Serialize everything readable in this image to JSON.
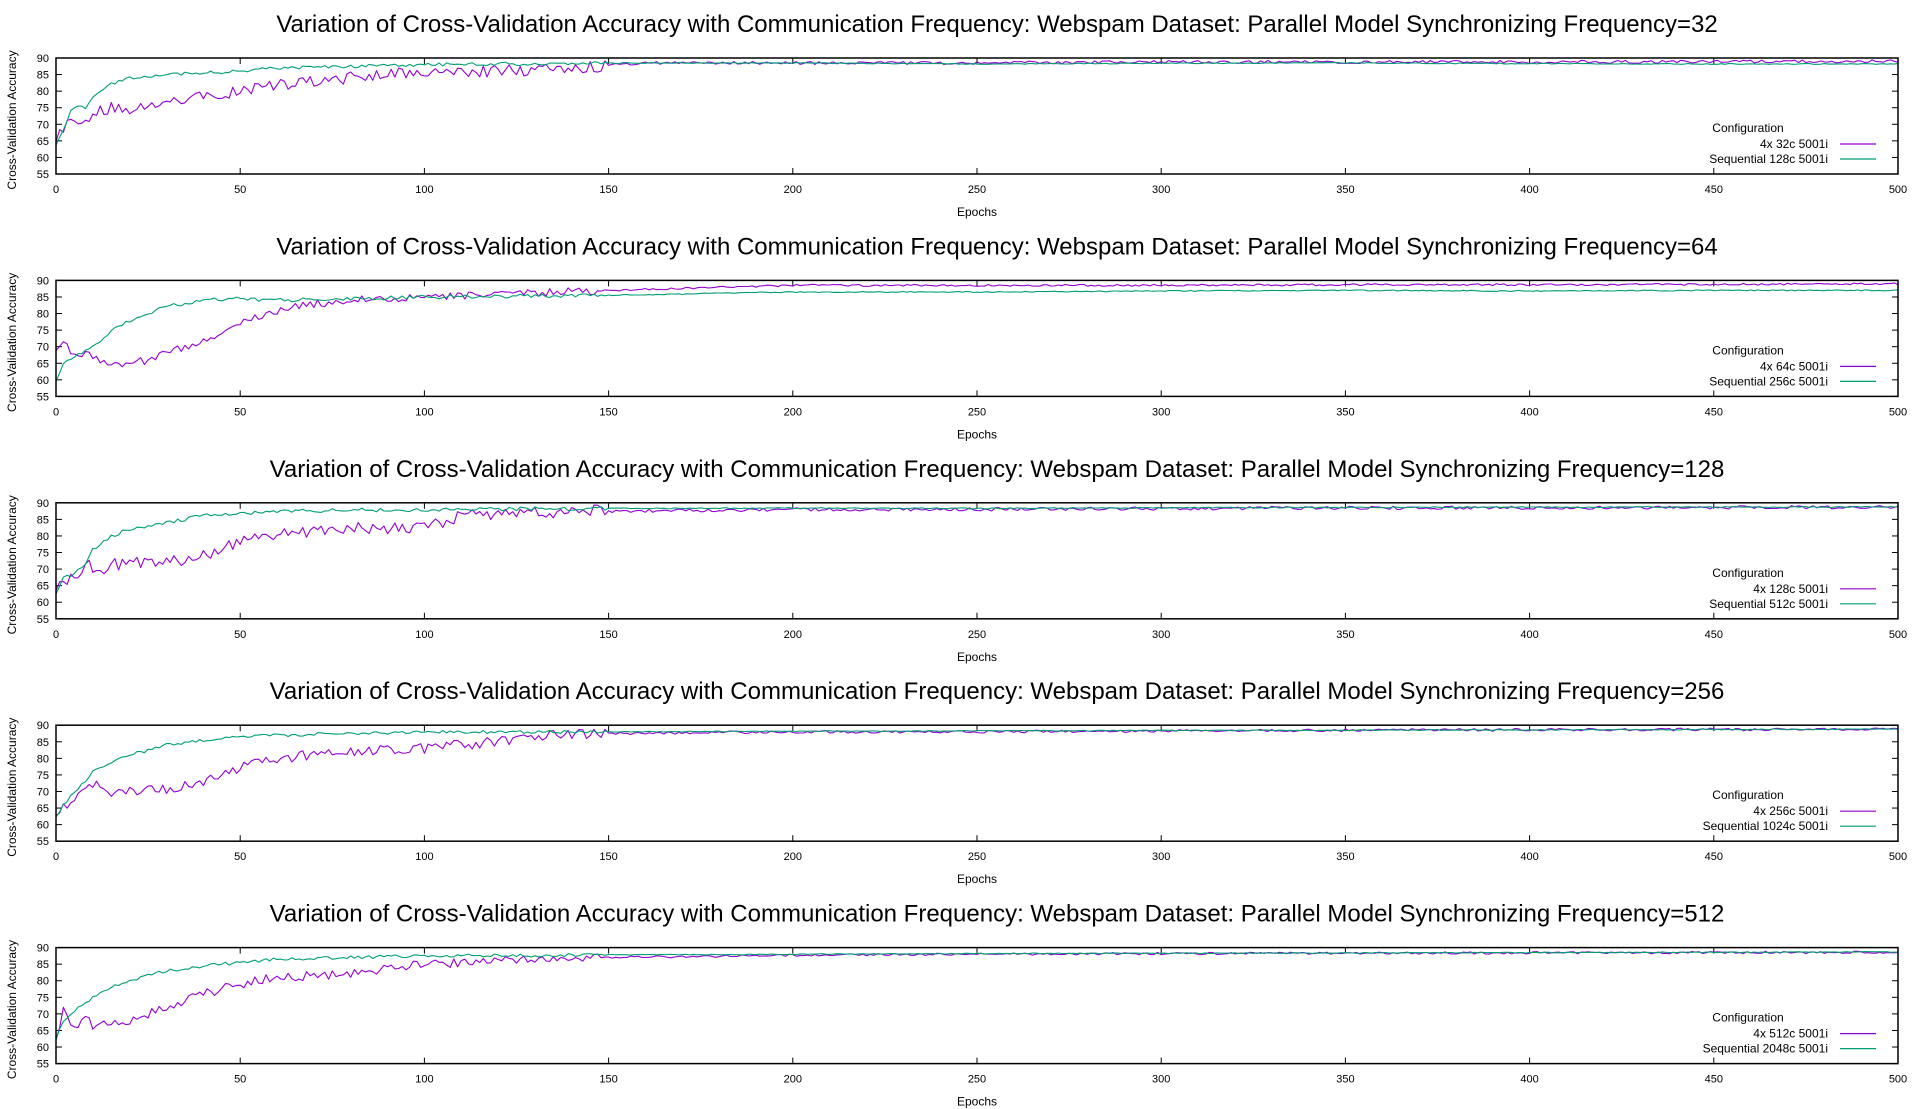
{
  "colors": {
    "series_parallel": "#9400d3",
    "series_sequential": "#009e73",
    "overlap": "#0000cc",
    "axis": "#000000"
  },
  "chart_data": [
    {
      "type": "line",
      "title": "Variation of Cross-Validation Accuracy with Communication Frequency: Webspam Dataset: Parallel Model Synchronizing Frequency=32",
      "xlabel": "Epochs",
      "ylabel": "Cross-Validation Accuracy",
      "xlim": [
        0,
        500
      ],
      "ylim": [
        55,
        90
      ],
      "xticks": [
        0,
        50,
        100,
        150,
        200,
        250,
        300,
        350,
        400,
        450,
        500
      ],
      "yticks": [
        55,
        60,
        65,
        70,
        75,
        80,
        85,
        90
      ],
      "legend_title": "Configuration",
      "legend_position": "bottom-right",
      "series": [
        {
          "name": "4x 32c 5001i",
          "color": "#9400d3",
          "x": [
            0,
            2,
            4,
            6,
            8,
            10,
            15,
            20,
            25,
            30,
            35,
            40,
            50,
            60,
            70,
            80,
            100,
            120,
            140,
            160,
            200,
            250,
            300,
            350,
            400,
            450,
            500
          ],
          "y": [
            66,
            69,
            72,
            70,
            71,
            74,
            75,
            74,
            76,
            77,
            78,
            78,
            80,
            82,
            83,
            84,
            86,
            86,
            87,
            88.5,
            88.5,
            88.5,
            88.8,
            88.8,
            88.8,
            88.9,
            89
          ],
          "noise": 1.8
        },
        {
          "name": "Sequential 128c 5001i",
          "color": "#009e73",
          "x": [
            0,
            2,
            4,
            6,
            8,
            10,
            15,
            20,
            30,
            40,
            50,
            60,
            80,
            100,
            150,
            200,
            250,
            300,
            350,
            400,
            450,
            500
          ],
          "y": [
            64,
            68,
            74,
            76,
            75,
            78,
            82,
            84,
            85,
            85.5,
            86,
            87,
            87.5,
            88,
            88.5,
            88.5,
            88.2,
            88.4,
            88.5,
            88.3,
            88.2,
            88.2
          ],
          "noise": 0.5
        }
      ]
    },
    {
      "type": "line",
      "title": "Variation of Cross-Validation Accuracy with Communication Frequency: Webspam Dataset: Parallel Model Synchronizing Frequency=64",
      "xlabel": "Epochs",
      "ylabel": "Cross-Validation Accuracy",
      "xlim": [
        0,
        500
      ],
      "ylim": [
        55,
        90
      ],
      "xticks": [
        0,
        50,
        100,
        150,
        200,
        250,
        300,
        350,
        400,
        450,
        500
      ],
      "yticks": [
        55,
        60,
        65,
        70,
        75,
        80,
        85,
        90
      ],
      "legend_title": "Configuration",
      "legend_position": "bottom-right",
      "series": [
        {
          "name": "4x 64c 5001i",
          "color": "#9400d3",
          "x": [
            0,
            2,
            5,
            10,
            15,
            20,
            25,
            30,
            40,
            50,
            60,
            70,
            80,
            100,
            120,
            150,
            200,
            250,
            300,
            350,
            400,
            450,
            500
          ],
          "y": [
            70,
            71,
            68,
            67,
            65,
            65,
            66,
            68,
            72,
            77,
            81,
            83,
            84,
            85,
            86,
            87,
            88.5,
            88.5,
            88.5,
            88.7,
            88.7,
            88.8,
            89
          ],
          "noise": 1.2
        },
        {
          "name": "Sequential 256c 5001i",
          "color": "#009e73",
          "x": [
            0,
            2,
            5,
            10,
            15,
            20,
            30,
            40,
            50,
            60,
            80,
            100,
            150,
            200,
            250,
            300,
            350,
            400,
            450,
            500
          ],
          "y": [
            60,
            65,
            67,
            70,
            75,
            78,
            82,
            84,
            84.5,
            84,
            84.5,
            85,
            85.5,
            86.5,
            86.5,
            86.8,
            87,
            86.8,
            87,
            87
          ],
          "noise": 0.6
        }
      ]
    },
    {
      "type": "line",
      "title": "Variation of Cross-Validation Accuracy with Communication Frequency: Webspam Dataset: Parallel Model Synchronizing Frequency=128",
      "xlabel": "Epochs",
      "ylabel": "Cross-Validation Accuracy",
      "xlim": [
        0,
        500
      ],
      "ylim": [
        55,
        90
      ],
      "xticks": [
        0,
        50,
        100,
        150,
        200,
        250,
        300,
        350,
        400,
        450,
        500
      ],
      "yticks": [
        55,
        60,
        65,
        70,
        75,
        80,
        85,
        90
      ],
      "legend_title": "Configuration",
      "legend_position": "bottom-right",
      "series": [
        {
          "name": "4x 128c 5001i",
          "color": "#9400d3",
          "x": [
            0,
            2,
            5,
            8,
            10,
            15,
            20,
            30,
            40,
            50,
            60,
            80,
            100,
            110,
            120,
            150,
            200,
            250,
            300,
            350,
            400,
            450,
            500
          ],
          "y": [
            62,
            67,
            68,
            72,
            70,
            71,
            72,
            72,
            74,
            78,
            80,
            82,
            83,
            86,
            87,
            87.5,
            88,
            88,
            88.3,
            88.5,
            88.5,
            88.6,
            88.7
          ],
          "noise": 2.0
        },
        {
          "name": "Sequential 512c 5001i",
          "color": "#009e73",
          "x": [
            0,
            2,
            5,
            8,
            10,
            15,
            20,
            30,
            40,
            50,
            60,
            80,
            100,
            150,
            200,
            250,
            300,
            350,
            400,
            450,
            500
          ],
          "y": [
            62,
            67,
            69,
            72,
            76,
            80,
            82,
            84,
            86,
            87,
            87.3,
            87.8,
            88,
            88.3,
            88.4,
            88.3,
            88.5,
            88.6,
            88.7,
            88.7,
            88.8
          ],
          "noise": 0.6
        }
      ]
    },
    {
      "type": "line",
      "title": "Variation of Cross-Validation Accuracy with Communication Frequency: Webspam Dataset: Parallel Model Synchronizing Frequency=256",
      "xlabel": "Epochs",
      "ylabel": "Cross-Validation Accuracy",
      "xlim": [
        0,
        500
      ],
      "ylim": [
        55,
        90
      ],
      "xticks": [
        0,
        50,
        100,
        150,
        200,
        250,
        300,
        350,
        400,
        450,
        500
      ],
      "yticks": [
        55,
        60,
        65,
        70,
        75,
        80,
        85,
        90
      ],
      "legend_title": "Configuration",
      "legend_position": "bottom-right",
      "series": [
        {
          "name": "4x 256c 5001i",
          "color": "#9400d3",
          "x": [
            0,
            2,
            5,
            8,
            10,
            15,
            20,
            30,
            40,
            50,
            60,
            80,
            100,
            120,
            130,
            150,
            200,
            250,
            300,
            350,
            400,
            450,
            500
          ],
          "y": [
            62,
            65,
            68,
            70,
            72,
            70,
            70,
            71,
            73,
            77,
            80,
            82,
            83,
            85,
            87,
            87.5,
            88,
            88,
            88.3,
            88.5,
            88.6,
            88.7,
            88.8
          ],
          "noise": 1.6
        },
        {
          "name": "Sequential 1024c 5001i",
          "color": "#009e73",
          "x": [
            0,
            2,
            5,
            8,
            10,
            15,
            20,
            30,
            40,
            50,
            60,
            80,
            100,
            150,
            200,
            250,
            300,
            350,
            400,
            450,
            500
          ],
          "y": [
            62,
            66,
            70,
            73,
            76,
            79,
            81,
            84,
            85.5,
            86.5,
            87,
            87.5,
            88,
            88,
            88.2,
            88.3,
            88.4,
            88.5,
            88.6,
            88.7,
            88.8
          ],
          "noise": 0.5
        }
      ]
    },
    {
      "type": "line",
      "title": "Variation of Cross-Validation Accuracy with Communication Frequency: Webspam Dataset: Parallel Model Synchronizing Frequency=512",
      "xlabel": "Epochs",
      "ylabel": "Cross-Validation Accuracy",
      "xlim": [
        0,
        500
      ],
      "ylim": [
        55,
        90
      ],
      "xticks": [
        0,
        50,
        100,
        150,
        200,
        250,
        300,
        350,
        400,
        450,
        500
      ],
      "yticks": [
        55,
        60,
        65,
        70,
        75,
        80,
        85,
        90
      ],
      "legend_title": "Configuration",
      "legend_position": "bottom-right",
      "series": [
        {
          "name": "4x 512c 5001i",
          "color": "#9400d3",
          "x": [
            0,
            2,
            4,
            6,
            8,
            10,
            15,
            20,
            30,
            40,
            50,
            60,
            80,
            100,
            120,
            150,
            200,
            250,
            300,
            350,
            400,
            450,
            500
          ],
          "y": [
            62,
            72,
            68,
            66,
            70,
            66,
            67,
            68,
            72,
            76,
            79,
            81,
            82,
            85,
            86,
            87,
            87.7,
            88,
            88.2,
            88.3,
            88.4,
            88.5,
            88.6
          ],
          "noise": 1.4
        },
        {
          "name": "Sequential 2048c 5001i",
          "color": "#009e73",
          "x": [
            0,
            2,
            5,
            8,
            10,
            15,
            20,
            30,
            40,
            50,
            60,
            80,
            100,
            150,
            200,
            250,
            300,
            350,
            400,
            450,
            500
          ],
          "y": [
            62,
            68,
            71,
            73,
            75,
            78,
            80,
            83,
            84.5,
            85.5,
            86.5,
            87,
            87.5,
            87.8,
            88,
            88.2,
            88.3,
            88.4,
            88.5,
            88.6,
            88.7
          ],
          "noise": 0.5
        }
      ]
    }
  ]
}
